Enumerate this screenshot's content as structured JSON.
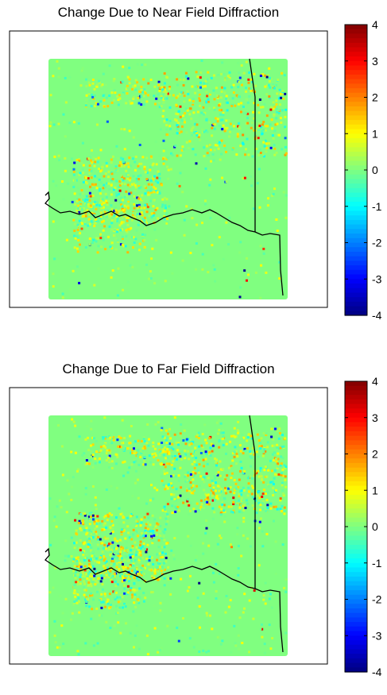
{
  "chart_data": [
    {
      "type": "heatmap",
      "title": "Change Due to Near Field Diffraction",
      "colorbar": {
        "min": -4,
        "max": 4,
        "ticks": [
          "4",
          "3",
          "2",
          "1",
          "0",
          "-1",
          "-2",
          "-3",
          "-4"
        ],
        "colormap": "jet"
      },
      "background_value": 0,
      "grid_lines": false,
      "boundary_overlay": true,
      "palette": {
        "background": "#9cff63",
        "boundary": "#000000"
      }
    },
    {
      "type": "heatmap",
      "title": "Change Due to Far Field Diffraction",
      "colorbar": {
        "min": -4,
        "max": 4,
        "ticks": [
          "4",
          "3",
          "2",
          "1",
          "0",
          "-1",
          "-2",
          "-3",
          "-4"
        ],
        "colormap": "jet"
      },
      "background_value": 0,
      "grid_lines": false,
      "boundary_overlay": true,
      "palette": {
        "background": "#9cff63",
        "boundary": "#000000"
      }
    }
  ]
}
